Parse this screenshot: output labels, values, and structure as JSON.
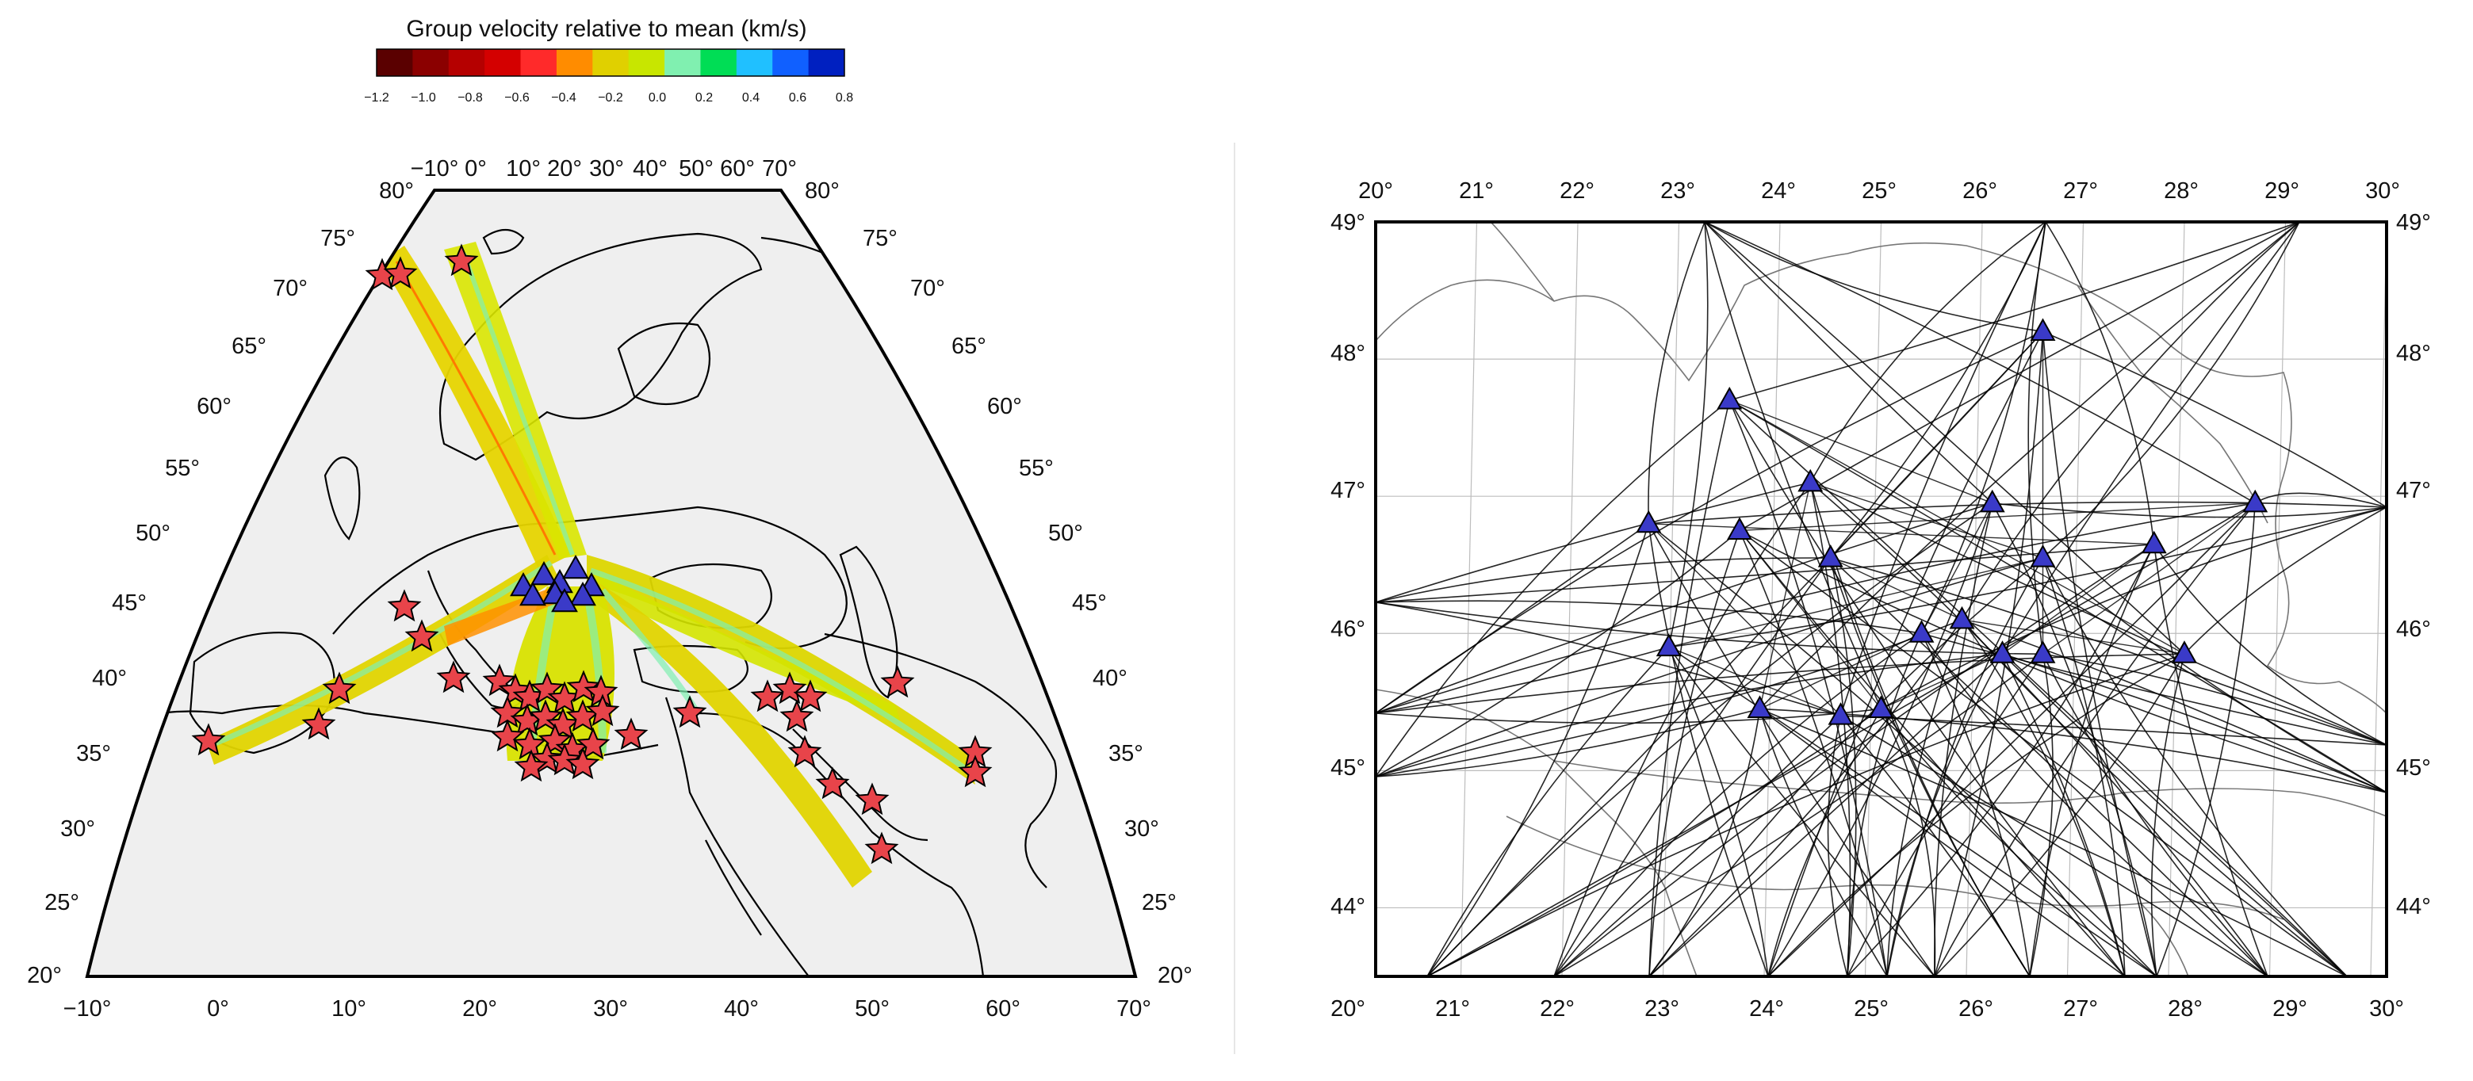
{
  "colorbar": {
    "title": "Group velocity relative to mean (km/s)",
    "ticks": [
      "−1.2",
      "−1.0",
      "−0.8",
      "−0.6",
      "−0.4",
      "−0.2",
      "0.0",
      "0.2",
      "0.4",
      "0.6",
      "0.8"
    ],
    "colors": [
      "#5a0000",
      "#8b0000",
      "#b50000",
      "#d40000",
      "#ff2a2a",
      "#ff8c00",
      "#e0d000",
      "#c8e600",
      "#80f0b0",
      "#00dd55",
      "#20c0ff",
      "#1060ff",
      "#0020c0"
    ]
  },
  "left_map": {
    "lon_labels_bottom": [
      "−10°",
      "0°",
      "10°",
      "20°",
      "30°",
      "40°",
      "50°",
      "60°",
      "70°"
    ],
    "lon_labels_top": [
      "−10°",
      "0°",
      "10°",
      "20°",
      "30°",
      "40°",
      "50°",
      "60°",
      "70°"
    ],
    "lat_labels": [
      "20°",
      "25°",
      "30°",
      "35°",
      "40°",
      "45°",
      "50°",
      "55°",
      "60°",
      "65°",
      "70°",
      "75°",
      "80°"
    ]
  },
  "right_map": {
    "lon_labels": [
      "20°",
      "21°",
      "22°",
      "23°",
      "24°",
      "25°",
      "26°",
      "27°",
      "28°",
      "29°",
      "30°"
    ],
    "lat_labels": [
      "44°",
      "45°",
      "46°",
      "47°",
      "48°",
      "49°"
    ],
    "stations": [
      {
        "lon": 26.6,
        "lat": 48.2
      },
      {
        "lon": 23.5,
        "lat": 47.7
      },
      {
        "lon": 24.3,
        "lat": 47.1
      },
      {
        "lon": 22.7,
        "lat": 46.8
      },
      {
        "lon": 23.6,
        "lat": 46.75
      },
      {
        "lon": 24.5,
        "lat": 46.55
      },
      {
        "lon": 26.1,
        "lat": 46.95
      },
      {
        "lon": 26.6,
        "lat": 46.55
      },
      {
        "lon": 27.7,
        "lat": 46.65
      },
      {
        "lon": 28.7,
        "lat": 46.95
      },
      {
        "lon": 25.8,
        "lat": 46.1
      },
      {
        "lon": 25.4,
        "lat": 46.0
      },
      {
        "lon": 22.9,
        "lat": 45.9
      },
      {
        "lon": 26.2,
        "lat": 45.85
      },
      {
        "lon": 26.6,
        "lat": 45.85
      },
      {
        "lon": 28.0,
        "lat": 45.85
      },
      {
        "lon": 23.8,
        "lat": 45.45
      },
      {
        "lon": 24.6,
        "lat": 45.4
      },
      {
        "lon": 25.0,
        "lat": 45.45
      }
    ]
  }
}
